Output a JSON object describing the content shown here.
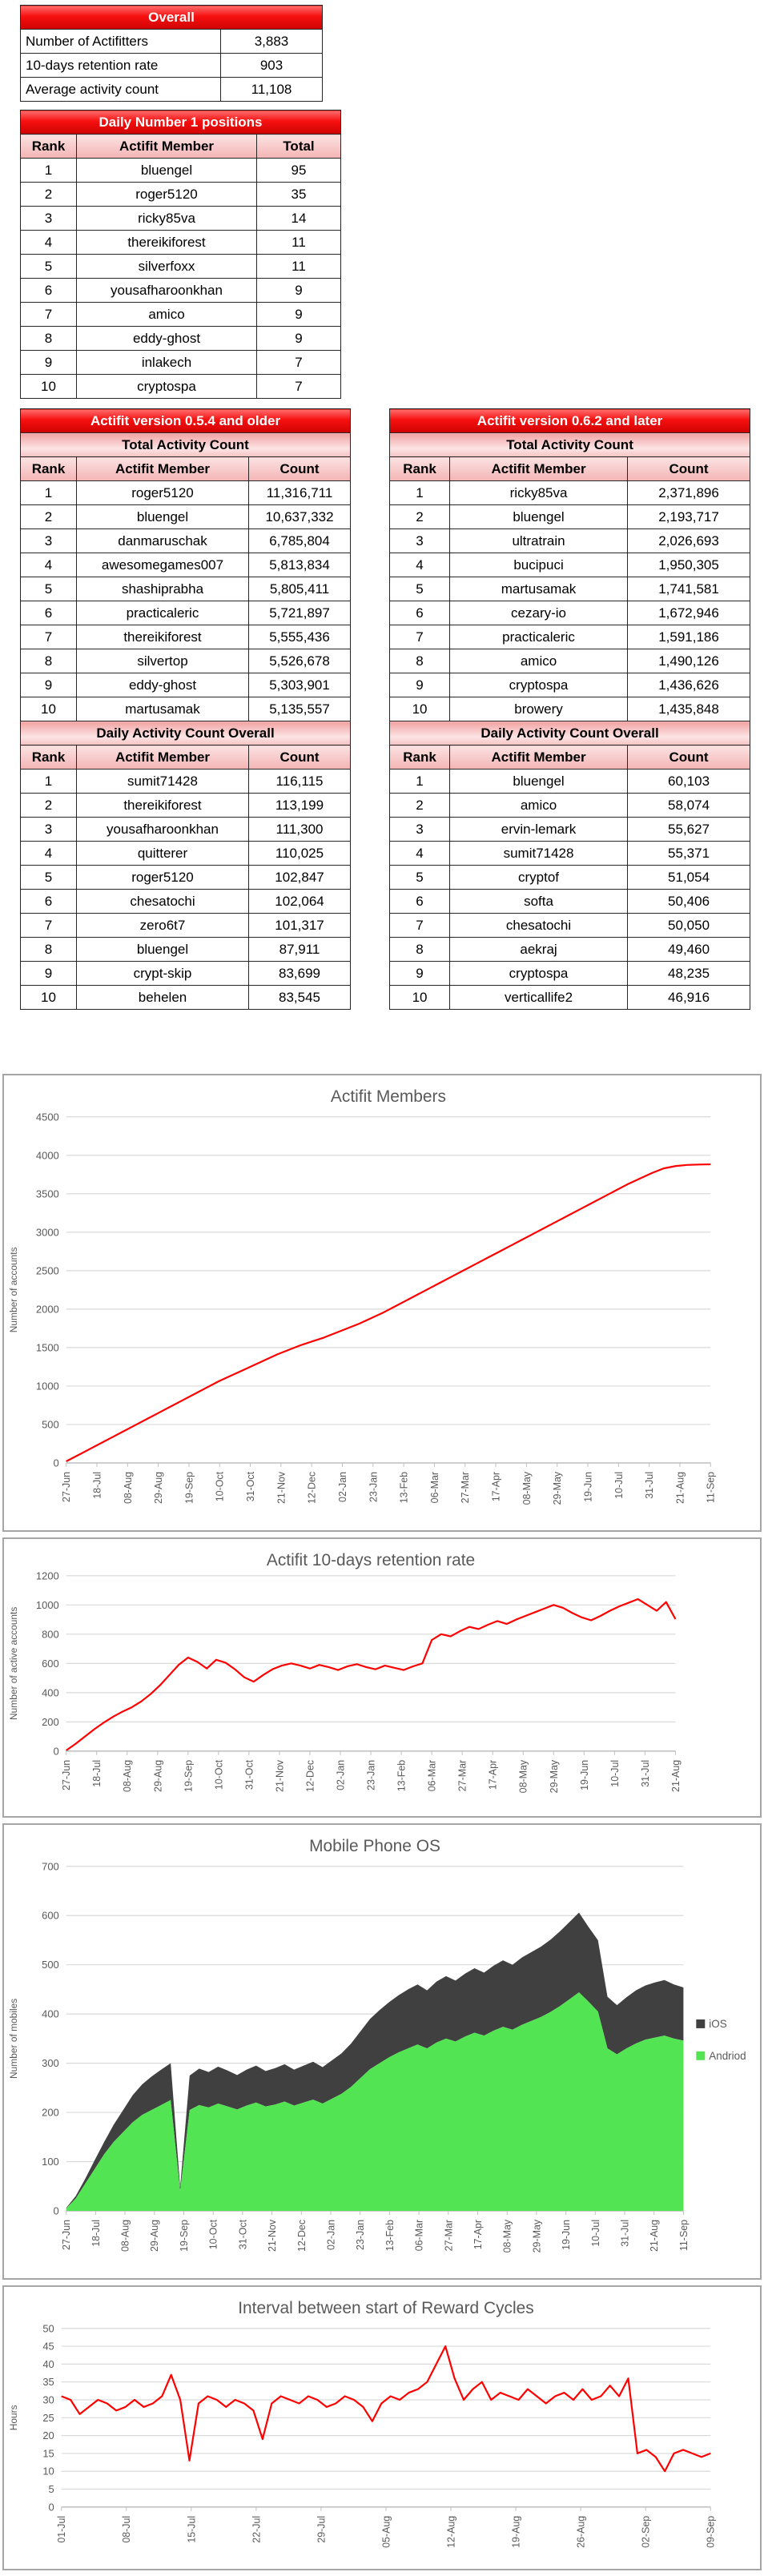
{
  "tables": {
    "overall": {
      "title": "Overall",
      "rows": [
        [
          "Number of Actifitters",
          "3,883"
        ],
        [
          "10-days retention rate",
          "903"
        ],
        [
          "Average activity count",
          "11,108"
        ]
      ]
    },
    "daily_number1": {
      "title": "Daily Number 1 positions",
      "columns": [
        "Rank",
        "Actifit Member",
        "Total"
      ],
      "rows": [
        [
          "1",
          "bluengel",
          "95"
        ],
        [
          "2",
          "roger5120",
          "35"
        ],
        [
          "3",
          "ricky85va",
          "14"
        ],
        [
          "4",
          "thereikiforest",
          "11"
        ],
        [
          "5",
          "silverfoxx",
          "11"
        ],
        [
          "6",
          "yousafharoonkhan",
          "9"
        ],
        [
          "7",
          "amico",
          "9"
        ],
        [
          "8",
          "eddy-ghost",
          "9"
        ],
        [
          "9",
          "inlakech",
          "7"
        ],
        [
          "10",
          "cryptospa",
          "7"
        ]
      ]
    },
    "v054": {
      "title": "Actifit version 0.5.4 and older",
      "columns": [
        "Rank",
        "Actifit Member",
        "Count"
      ],
      "total_subtitle": "Total Activity Count",
      "total_rows": [
        [
          "1",
          "roger5120",
          "11,316,711"
        ],
        [
          "2",
          "bluengel",
          "10,637,332"
        ],
        [
          "3",
          "danmaruschak",
          "6,785,804"
        ],
        [
          "4",
          "awesomegames007",
          "5,813,834"
        ],
        [
          "5",
          "shashiprabha",
          "5,805,411"
        ],
        [
          "6",
          "practicaleric",
          "5,721,897"
        ],
        [
          "7",
          "thereikiforest",
          "5,555,436"
        ],
        [
          "8",
          "silvertop",
          "5,526,678"
        ],
        [
          "9",
          "eddy-ghost",
          "5,303,901"
        ],
        [
          "10",
          "martusamak",
          "5,135,557"
        ]
      ],
      "daily_subtitle": "Daily Activity Count Overall",
      "daily_rows": [
        [
          "1",
          "sumit71428",
          "116,115"
        ],
        [
          "2",
          "thereikiforest",
          "113,199"
        ],
        [
          "3",
          "yousafharoonkhan",
          "111,300"
        ],
        [
          "4",
          "quitterer",
          "110,025"
        ],
        [
          "5",
          "roger5120",
          "102,847"
        ],
        [
          "6",
          "chesatochi",
          "102,064"
        ],
        [
          "7",
          "zero6t7",
          "101,317"
        ],
        [
          "8",
          "bluengel",
          "87,911"
        ],
        [
          "9",
          "crypt-skip",
          "83,699"
        ],
        [
          "10",
          "behelen",
          "83,545"
        ]
      ]
    },
    "v062": {
      "title": "Actifit version 0.6.2 and later",
      "columns": [
        "Rank",
        "Actifit Member",
        "Count"
      ],
      "total_subtitle": "Total Activity Count",
      "total_rows": [
        [
          "1",
          "ricky85va",
          "2,371,896"
        ],
        [
          "2",
          "bluengel",
          "2,193,717"
        ],
        [
          "3",
          "ultratrain",
          "2,026,693"
        ],
        [
          "4",
          "bucipuci",
          "1,950,305"
        ],
        [
          "5",
          "martusamak",
          "1,741,581"
        ],
        [
          "6",
          "cezary-io",
          "1,672,946"
        ],
        [
          "7",
          "practicaleric",
          "1,591,186"
        ],
        [
          "8",
          "amico",
          "1,490,126"
        ],
        [
          "9",
          "cryptospa",
          "1,436,626"
        ],
        [
          "10",
          "browery",
          "1,435,848"
        ]
      ],
      "daily_subtitle": "Daily Activity Count Overall",
      "daily_rows": [
        [
          "1",
          "bluengel",
          "60,103"
        ],
        [
          "2",
          "amico",
          "58,074"
        ],
        [
          "3",
          "ervin-lemark",
          "55,627"
        ],
        [
          "4",
          "sumit71428",
          "55,371"
        ],
        [
          "5",
          "cryptof",
          "51,054"
        ],
        [
          "6",
          "softa",
          "50,406"
        ],
        [
          "7",
          "chesatochi",
          "50,050"
        ],
        [
          "8",
          "aekraj",
          "49,460"
        ],
        [
          "9",
          "cryptospa",
          "48,235"
        ],
        [
          "10",
          "verticallife2",
          "46,916"
        ]
      ]
    }
  },
  "colors": {
    "line_red": "#FF0000",
    "ios_gray": "#404040",
    "android_green": "#53e453",
    "grid": "#d9d9d9",
    "axis": "#bfbfbf",
    "chart_text": "#595959"
  },
  "chart_data": [
    {
      "id": "members",
      "type": "line",
      "title": "Actifit Members",
      "ylabel": "Number of accounts",
      "ylim": [
        0,
        4500
      ],
      "ytick_step": 500,
      "grid": true,
      "line_color": "#FF0000",
      "xticklabels": [
        "27-Jun",
        "18-Jul",
        "08-Aug",
        "29-Aug",
        "19-Sep",
        "10-Oct",
        "31-Oct",
        "21-Nov",
        "12-Dec",
        "02-Jan",
        "23-Jan",
        "13-Feb",
        "06-Mar",
        "27-Mar",
        "17-Apr",
        "08-May",
        "29-May",
        "19-Jun",
        "10-Jul",
        "31-Jul",
        "21-Aug",
        "11-Sep"
      ],
      "values": [
        20,
        100,
        180,
        260,
        340,
        420,
        500,
        580,
        660,
        740,
        820,
        900,
        980,
        1060,
        1130,
        1200,
        1270,
        1340,
        1410,
        1470,
        1530,
        1580,
        1630,
        1690,
        1750,
        1810,
        1880,
        1950,
        2030,
        2110,
        2190,
        2270,
        2350,
        2430,
        2510,
        2590,
        2670,
        2750,
        2830,
        2910,
        2990,
        3070,
        3150,
        3230,
        3310,
        3390,
        3470,
        3550,
        3630,
        3700,
        3770,
        3830,
        3860,
        3875,
        3880,
        3883
      ]
    },
    {
      "id": "retention",
      "type": "line",
      "title": "Actifit 10-days retention rate",
      "ylabel": "Number of active accounts",
      "ylim": [
        0,
        1200
      ],
      "ytick_step": 200,
      "grid": true,
      "line_color": "#FF0000",
      "xticklabels": [
        "27-Jun",
        "18-Jul",
        "08-Aug",
        "29-Aug",
        "19-Sep",
        "10-Oct",
        "31-Oct",
        "21-Nov",
        "12-Dec",
        "02-Jan",
        "23-Jan",
        "13-Feb",
        "06-Mar",
        "27-Mar",
        "17-Apr",
        "08-May",
        "29-May",
        "19-Jun",
        "10-Jul",
        "31-Jul",
        "21-Aug"
      ],
      "values": [
        5,
        50,
        100,
        150,
        195,
        235,
        270,
        300,
        340,
        390,
        450,
        520,
        590,
        640,
        610,
        565,
        625,
        605,
        560,
        505,
        475,
        520,
        560,
        585,
        600,
        585,
        565,
        590,
        575,
        555,
        580,
        595,
        575,
        560,
        585,
        570,
        555,
        580,
        600,
        760,
        800,
        785,
        820,
        850,
        835,
        865,
        890,
        870,
        900,
        925,
        950,
        975,
        1000,
        980,
        945,
        915,
        895,
        925,
        960,
        990,
        1015,
        1040,
        1000,
        960,
        1020,
        903
      ]
    },
    {
      "id": "mobile",
      "type": "stacked_area",
      "title": "Mobile Phone OS",
      "ylabel": "Number of mobiles",
      "ylim": [
        0,
        700
      ],
      "ytick_step": 100,
      "grid": true,
      "xticklabels": [
        "27-Jun",
        "18-Jul",
        "08-Aug",
        "29-Aug",
        "19-Sep",
        "10-Oct",
        "31-Oct",
        "21-Nov",
        "12-Dec",
        "02-Jan",
        "23-Jan",
        "13-Feb",
        "06-Mar",
        "27-Mar",
        "17-Apr",
        "08-May",
        "29-May",
        "19-Jun",
        "10-Jul",
        "31-Jul",
        "21-Aug",
        "11-Sep"
      ],
      "series": [
        {
          "name": "Andriod",
          "color": "#53e453",
          "values": [
            5,
            25,
            55,
            85,
            115,
            140,
            160,
            180,
            195,
            205,
            215,
            225,
            40,
            205,
            215,
            210,
            218,
            212,
            206,
            214,
            220,
            212,
            216,
            222,
            214,
            220,
            226,
            218,
            228,
            238,
            252,
            270,
            288,
            300,
            312,
            322,
            330,
            338,
            330,
            342,
            350,
            344,
            354,
            362,
            356,
            366,
            374,
            368,
            378,
            386,
            394,
            404,
            416,
            430,
            444,
            425,
            405,
            330,
            318,
            330,
            340,
            348,
            352,
            356,
            350,
            346
          ]
        },
        {
          "name": "iOS",
          "color": "#404040",
          "values": [
            1,
            5,
            10,
            18,
            25,
            35,
            45,
            55,
            62,
            68,
            72,
            75,
            8,
            70,
            74,
            72,
            75,
            73,
            70,
            73,
            75,
            72,
            74,
            76,
            73,
            75,
            77,
            74,
            78,
            82,
            88,
            95,
            102,
            108,
            112,
            116,
            120,
            122,
            118,
            124,
            127,
            124,
            128,
            131,
            128,
            132,
            135,
            132,
            137,
            140,
            143,
            147,
            152,
            157,
            162,
            152,
            145,
            105,
            100,
            104,
            108,
            110,
            112,
            113,
            110,
            108
          ]
        }
      ],
      "legend": [
        {
          "label": "iOS",
          "color": "#404040"
        },
        {
          "label": "Andriod",
          "color": "#53e453"
        }
      ]
    },
    {
      "id": "interval",
      "type": "line",
      "title": "Interval between start of Reward Cycles",
      "ylabel": "Hours",
      "ylim": [
        0,
        50
      ],
      "ytick_step": 5,
      "grid": true,
      "line_color": "#FF0000",
      "xticklabels": [
        "01-Jul",
        "08-Jul",
        "15-Jul",
        "22-Jul",
        "29-Jul",
        "05-Aug",
        "12-Aug",
        "19-Aug",
        "26-Aug",
        "02-Sep",
        "09-Sep"
      ],
      "values": [
        31,
        30,
        26,
        28,
        30,
        29,
        27,
        28,
        30,
        28,
        29,
        31,
        37,
        30,
        13,
        29,
        31,
        30,
        28,
        30,
        29,
        27,
        19,
        29,
        31,
        30,
        29,
        31,
        30,
        28,
        29,
        31,
        30,
        28,
        24,
        29,
        31,
        30,
        32,
        33,
        35,
        40,
        45,
        36,
        30,
        33,
        35,
        30,
        32,
        31,
        30,
        33,
        31,
        29,
        31,
        32,
        30,
        33,
        30,
        31,
        34,
        31,
        36,
        15,
        16,
        14,
        10,
        15,
        16,
        15,
        14,
        15
      ]
    }
  ]
}
